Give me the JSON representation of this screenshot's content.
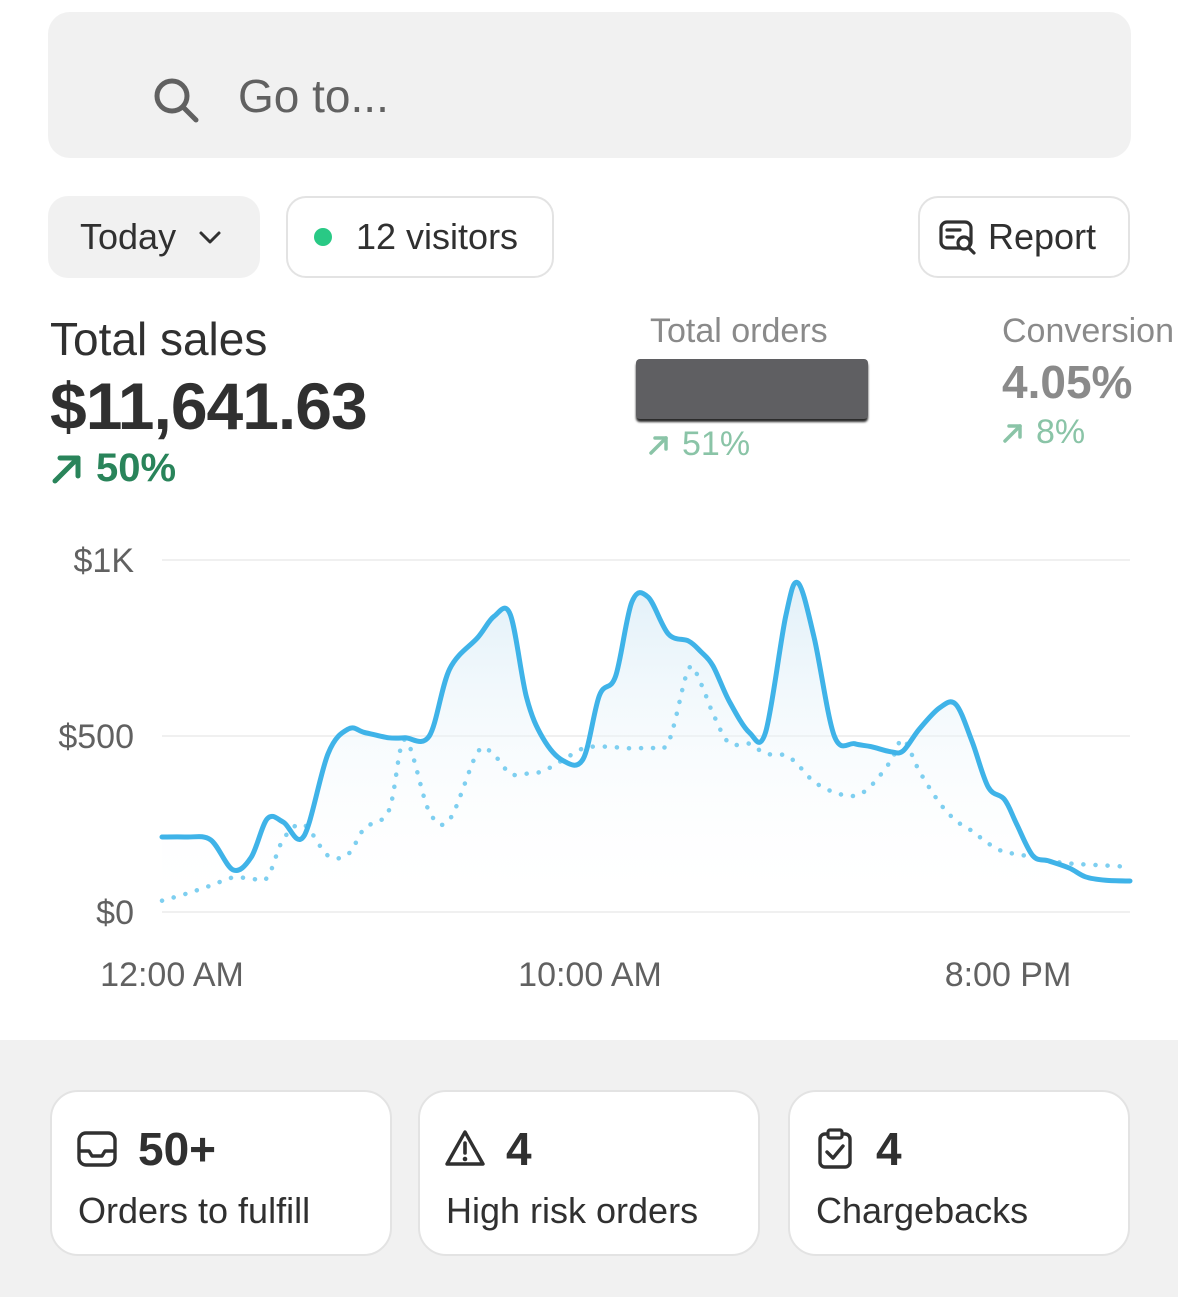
{
  "search": {
    "placeholder": "Go to..."
  },
  "filters": {
    "date_range": "Today",
    "visitors": "12 visitors",
    "report": "Report"
  },
  "metrics": {
    "total_sales": {
      "label": "Total sales",
      "value": "$11,641.63",
      "delta": "50%"
    },
    "total_orders": {
      "label": "Total orders",
      "delta": "51%"
    },
    "conversion": {
      "label": "Conversion",
      "value": "4.05%",
      "delta": "8%"
    }
  },
  "colors": {
    "primary_line": "#3fb3e8",
    "comparison_line": "#7ecff0",
    "positive": "#29845a",
    "visitor_dot": "#29c985"
  },
  "chart_data": {
    "type": "line",
    "y_ticks": [
      "$1K",
      "$500",
      "$0"
    ],
    "x_ticks": [
      "12:00 AM",
      "10:00 AM",
      "8:00 PM"
    ],
    "ylim": [
      0,
      1000
    ],
    "xlim": [
      0,
      23.9
    ],
    "grid": true,
    "series": [
      {
        "style": "solid",
        "x": [
          0,
          0.6,
          1.2,
          1.75,
          2.2,
          2.6,
          3.0,
          3.5,
          4.1,
          4.6,
          5.0,
          5.6,
          6.0,
          6.6,
          7.1,
          7.8,
          8.2,
          8.6,
          9.0,
          9.4,
          9.9,
          10.4,
          10.8,
          11.2,
          11.6,
          12.0,
          12.5,
          13.0,
          13.3,
          13.6,
          14.0,
          14.5,
          14.9,
          15.4,
          15.7,
          16.1,
          16.6,
          17.1,
          17.5,
          18.0,
          18.3,
          18.7,
          19.2,
          19.6,
          20.0,
          20.4,
          20.8,
          21.1,
          21.5,
          21.9,
          22.4,
          22.8,
          23.3,
          23.9
        ],
        "y": [
          213,
          213,
          205,
          120,
          155,
          265,
          255,
          215,
          450,
          520,
          510,
          495,
          495,
          500,
          690,
          780,
          840,
          845,
          610,
          495,
          430,
          435,
          615,
          670,
          880,
          895,
          790,
          770,
          740,
          700,
          600,
          510,
          510,
          840,
          935,
          780,
          500,
          478,
          470,
          455,
          458,
          520,
          580,
          590,
          485,
          355,
          320,
          250,
          160,
          145,
          125,
          100,
          90,
          88
        ]
      },
      {
        "style": "dotted",
        "x": [
          0,
          0.6,
          1.2,
          1.75,
          2.2,
          2.6,
          3.0,
          3.5,
          4.1,
          4.6,
          5.0,
          5.6,
          6.0,
          6.6,
          7.1,
          7.8,
          8.2,
          8.6,
          9.0,
          9.4,
          9.9,
          10.4,
          10.8,
          11.2,
          11.6,
          12.0,
          12.5,
          13.0,
          13.3,
          13.6,
          14.0,
          14.5,
          14.9,
          15.4,
          15.7,
          16.1,
          16.6,
          17.1,
          17.5,
          18.0,
          18.3,
          18.7,
          19.2,
          19.6,
          20.0,
          20.4,
          20.8,
          21.1,
          21.5,
          21.9,
          22.4,
          22.8,
          23.3,
          23.9
        ],
        "y": [
          32,
          52,
          75,
          98,
          95,
          98,
          208,
          248,
          160,
          165,
          238,
          288,
          490,
          285,
          263,
          455,
          445,
          393,
          393,
          400,
          432,
          465,
          470,
          468,
          465,
          468,
          482,
          690,
          650,
          565,
          480,
          478,
          450,
          445,
          418,
          370,
          340,
          330,
          358,
          430,
          490,
          400,
          310,
          260,
          230,
          195,
          170,
          165,
          155,
          145,
          138,
          135,
          132,
          128
        ]
      }
    ]
  },
  "cards": [
    {
      "icon": "inbox-icon",
      "value": "50+",
      "label": "Orders to fulfill"
    },
    {
      "icon": "warning-icon",
      "value": "4",
      "label": "High risk orders"
    },
    {
      "icon": "clipboard-check-icon",
      "value": "4",
      "label": "Chargebacks"
    }
  ]
}
